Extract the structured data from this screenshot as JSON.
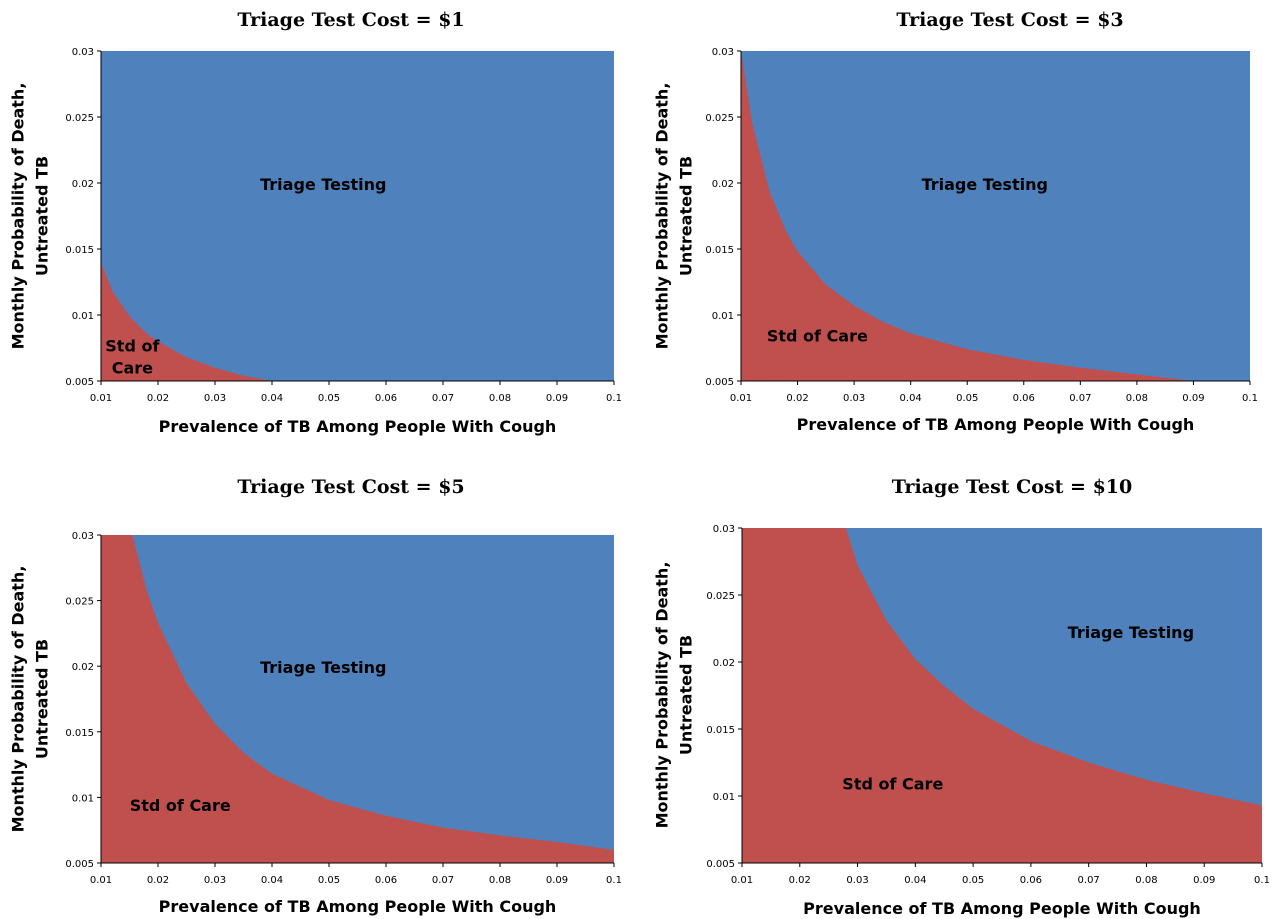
{
  "chart_data": [
    {
      "type": "area",
      "title": "Triage Test Cost = $1",
      "xlabel": "Prevalence of TB Among People With Cough",
      "ylabel": [
        "Monthly Probability of Death,",
        "Untreated TB"
      ],
      "xlim": [
        0.01,
        0.1
      ],
      "ylim": [
        0.005,
        0.03
      ],
      "x_ticks": [
        "0.01",
        "0.02",
        "0.03",
        "0.04",
        "0.05",
        "0.06",
        "0.07",
        "0.08",
        "0.09",
        "0.1"
      ],
      "y_ticks": [
        "0.005",
        "0.01",
        "0.015",
        "0.02",
        "0.025",
        "0.03"
      ],
      "colors": {
        "triage": "#4F81BD",
        "std": "#C0504D"
      },
      "boundary": {
        "x": [
          0.01,
          0.012,
          0.015,
          0.018,
          0.02,
          0.025,
          0.03,
          0.035,
          0.04,
          0.1
        ],
        "y": [
          0.014,
          0.0118,
          0.0099,
          0.0086,
          0.008,
          0.0068,
          0.006,
          0.0054,
          0.005,
          0.005
        ]
      },
      "regions": [
        {
          "name": "triage",
          "lines": [
            "Triage Testing"
          ],
          "x": 0.049,
          "y": 0.0199
        },
        {
          "name": "std",
          "lines": [
            "Std of",
            "Care"
          ],
          "x": 0.0155,
          "y": 0.0068
        }
      ]
    },
    {
      "type": "area",
      "title": "Triage Test Cost = $3",
      "xlabel": "Prevalence of TB Among People With Cough",
      "ylabel": [
        "Monthly Probability of Death,",
        "Untreated TB"
      ],
      "xlim": [
        0.01,
        0.1
      ],
      "ylim": [
        0.005,
        0.03
      ],
      "x_ticks": [
        "0.01",
        "0.02",
        "0.03",
        "0.04",
        "0.05",
        "0.06",
        "0.07",
        "0.08",
        "0.09",
        "0.1"
      ],
      "y_ticks": [
        "0.005",
        "0.01",
        "0.015",
        "0.02",
        "0.025",
        "0.03"
      ],
      "colors": {
        "triage": "#4F81BD",
        "std": "#C0504D"
      },
      "boundary": {
        "x": [
          0.01,
          0.012,
          0.015,
          0.018,
          0.02,
          0.025,
          0.03,
          0.035,
          0.04,
          0.05,
          0.06,
          0.07,
          0.08,
          0.09,
          0.1
        ],
        "y": [
          0.03,
          0.0245,
          0.0194,
          0.0163,
          0.0148,
          0.0123,
          0.0107,
          0.0095,
          0.0086,
          0.0074,
          0.0066,
          0.006,
          0.0055,
          0.005,
          0.005
        ]
      },
      "regions": [
        {
          "name": "triage",
          "lines": [
            "Triage Testing"
          ],
          "x": 0.0531,
          "y": 0.0199
        },
        {
          "name": "std",
          "lines": [
            "Std of Care"
          ],
          "x": 0.0235,
          "y": 0.0084
        }
      ]
    },
    {
      "type": "area",
      "title": "Triage Test Cost = $5",
      "xlabel": "Prevalence of TB Among People With Cough",
      "ylabel": [
        "Monthly Probability of Death,",
        "Untreated TB"
      ],
      "xlim": [
        0.01,
        0.1
      ],
      "ylim": [
        0.005,
        0.03
      ],
      "x_ticks": [
        "0.01",
        "0.02",
        "0.03",
        "0.04",
        "0.05",
        "0.06",
        "0.07",
        "0.08",
        "0.09",
        "0.1"
      ],
      "y_ticks": [
        "0.005",
        "0.01",
        "0.015",
        "0.02",
        "0.025",
        "0.03"
      ],
      "colors": {
        "triage": "#4F81BD",
        "std": "#C0504D"
      },
      "boundary": {
        "x": [
          0.01,
          0.0155,
          0.018,
          0.02,
          0.025,
          0.03,
          0.035,
          0.04,
          0.05,
          0.06,
          0.07,
          0.08,
          0.09,
          0.1
        ],
        "y": [
          0.03,
          0.03,
          0.0258,
          0.0233,
          0.0187,
          0.0156,
          0.0134,
          0.0118,
          0.0098,
          0.0086,
          0.0077,
          0.0071,
          0.0066,
          0.006
        ]
      },
      "regions": [
        {
          "name": "triage",
          "lines": [
            "Triage Testing"
          ],
          "x": 0.049,
          "y": 0.0199
        },
        {
          "name": "std",
          "lines": [
            "Std of Care"
          ],
          "x": 0.0239,
          "y": 0.0094
        }
      ]
    },
    {
      "type": "area",
      "title": "Triage Test Cost = $10",
      "xlabel": "Prevalence of TB Among People With Cough",
      "ylabel": [
        "Monthly Probability of Death,",
        "Untreated TB"
      ],
      "xlim": [
        0.01,
        0.1
      ],
      "ylim": [
        0.005,
        0.03
      ],
      "x_ticks": [
        "0.01",
        "0.02",
        "0.03",
        "0.04",
        "0.05",
        "0.06",
        "0.07",
        "0.08",
        "0.09",
        "0.1"
      ],
      "y_ticks": [
        "0.005",
        "0.01",
        "0.015",
        "0.02",
        "0.025",
        "0.03"
      ],
      "colors": {
        "triage": "#4F81BD",
        "std": "#C0504D"
      },
      "boundary": {
        "x": [
          0.01,
          0.028,
          0.03,
          0.035,
          0.04,
          0.045,
          0.05,
          0.06,
          0.07,
          0.08,
          0.09,
          0.1
        ],
        "y": [
          0.03,
          0.03,
          0.0272,
          0.0231,
          0.0202,
          0.0182,
          0.0165,
          0.0141,
          0.0125,
          0.0112,
          0.0102,
          0.0093
        ]
      },
      "regions": [
        {
          "name": "triage",
          "lines": [
            "Triage Testing"
          ],
          "x": 0.0773,
          "y": 0.0222
        },
        {
          "name": "std",
          "lines": [
            "Std of Care"
          ],
          "x": 0.0361,
          "y": 0.0109
        }
      ]
    }
  ]
}
